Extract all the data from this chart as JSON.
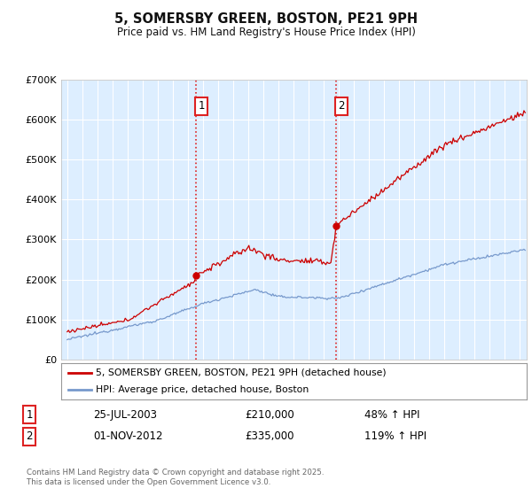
{
  "title": "5, SOMERSBY GREEN, BOSTON, PE21 9PH",
  "subtitle": "Price paid vs. HM Land Registry's House Price Index (HPI)",
  "legend_line1": "5, SOMERSBY GREEN, BOSTON, PE21 9PH (detached house)",
  "legend_line2": "HPI: Average price, detached house, Boston",
  "sale1_label": "1",
  "sale1_date": "25-JUL-2003",
  "sale1_price": 210000,
  "sale1_price_str": "£210,000",
  "sale1_hpi": "48% ↑ HPI",
  "sale1_t": 2003.54,
  "sale2_label": "2",
  "sale2_date": "01-NOV-2012",
  "sale2_price": 335000,
  "sale2_price_str": "£335,000",
  "sale2_hpi": "119% ↑ HPI",
  "sale2_t": 2012.83,
  "footnote": "Contains HM Land Registry data © Crown copyright and database right 2025.\nThis data is licensed under the Open Government Licence v3.0.",
  "red_color": "#cc0000",
  "blue_color": "#7799cc",
  "bg_color": "#ddeeff",
  "grid_color": "#ffffff",
  "vline_color": "#dd2222",
  "label_box_color": "#dd2222",
  "ylim": [
    0,
    700000
  ],
  "yticks": [
    0,
    100000,
    200000,
    300000,
    400000,
    500000,
    600000,
    700000
  ],
  "ytick_labels": [
    "£0",
    "£100K",
    "£200K",
    "£300K",
    "£400K",
    "£500K",
    "£600K",
    "£700K"
  ],
  "xmin": 1994.6,
  "xmax": 2025.5,
  "title_fontsize": 10.5,
  "subtitle_fontsize": 8.5
}
